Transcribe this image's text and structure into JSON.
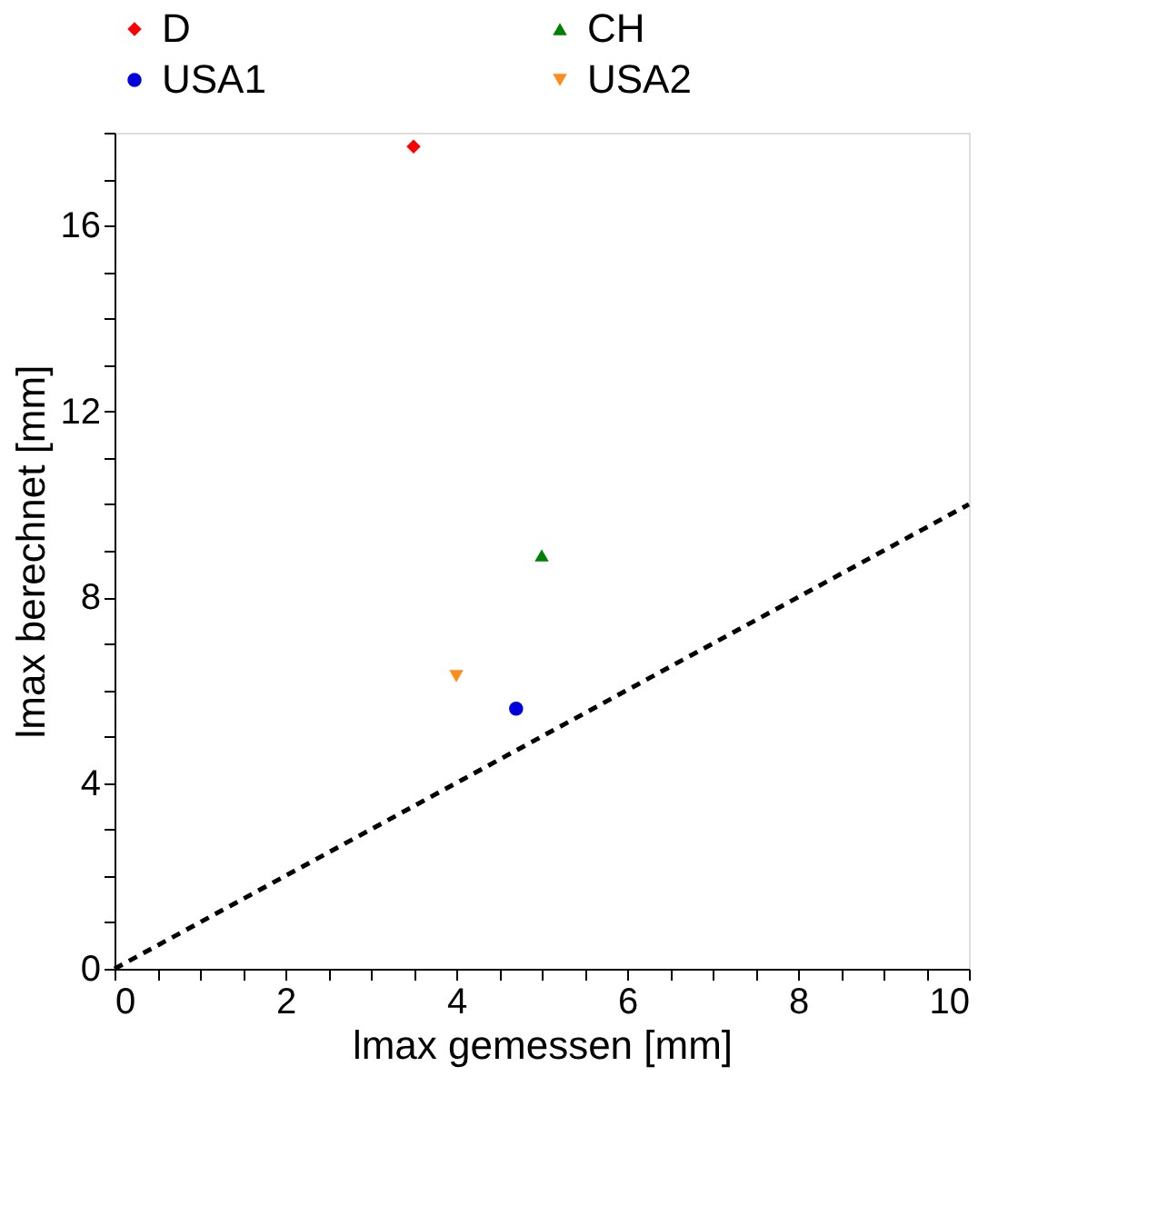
{
  "chart_data": {
    "type": "scatter",
    "xlabel": "lmax gemessen [mm]",
    "ylabel": "lmax berechnet [mm]",
    "xlim": [
      0,
      10
    ],
    "ylim": [
      0,
      18
    ],
    "xticks": [
      0,
      {
        "value": 0.5,
        "label": null
      },
      {
        "value": 1,
        "label": null
      },
      {
        "value": 1.5,
        "label": null
      },
      2,
      {
        "value": 2.5,
        "label": null
      },
      {
        "value": 3,
        "label": null
      },
      {
        "value": 3.5,
        "label": null
      },
      4,
      {
        "value": 4.5,
        "label": null
      },
      {
        "value": 5,
        "label": null
      },
      {
        "value": 5.5,
        "label": null
      },
      6,
      {
        "value": 6.5,
        "label": null
      },
      {
        "value": 7,
        "label": null
      },
      {
        "value": 7.5,
        "label": null
      },
      8,
      {
        "value": 8.5,
        "label": null
      },
      {
        "value": 9,
        "label": null
      },
      {
        "value": 9.5,
        "label": null
      },
      10
    ],
    "yticks": [
      0,
      {
        "value": 1,
        "label": null
      },
      {
        "value": 2,
        "label": null
      },
      {
        "value": 3,
        "label": null
      },
      4,
      {
        "value": 5,
        "label": null
      },
      {
        "value": 6,
        "label": null
      },
      {
        "value": 7,
        "label": null
      },
      8,
      {
        "value": 9,
        "label": null
      },
      {
        "value": 10,
        "label": null
      },
      {
        "value": 11,
        "label": null
      },
      12,
      {
        "value": 13,
        "label": null
      },
      {
        "value": 14,
        "label": null
      },
      {
        "value": 15,
        "label": null
      },
      16,
      {
        "value": 17,
        "label": null
      },
      {
        "value": 18,
        "label": null
      }
    ],
    "grid": false,
    "legend": "top",
    "series": [
      {
        "name": "D",
        "color": "#ff0000",
        "marker": "diamond",
        "x": [
          3.5
        ],
        "values": [
          17.7
        ]
      },
      {
        "name": "CH",
        "color": "#008000",
        "marker": "triangle",
        "x": [
          5.0
        ],
        "values": [
          8.9
        ]
      },
      {
        "name": "USA1",
        "color": "#0000dd",
        "marker": "circle",
        "x": [
          4.7
        ],
        "values": [
          5.6
        ]
      },
      {
        "name": "USA2",
        "color": "#ff8c1a",
        "marker": "triangle-down",
        "x": [
          4.0
        ],
        "values": [
          6.3
        ]
      },
      {
        "type": "line",
        "color": "#000000",
        "line_style": "dashed",
        "marker": "none",
        "x": [
          0,
          10
        ],
        "values": [
          0,
          10
        ]
      }
    ]
  }
}
